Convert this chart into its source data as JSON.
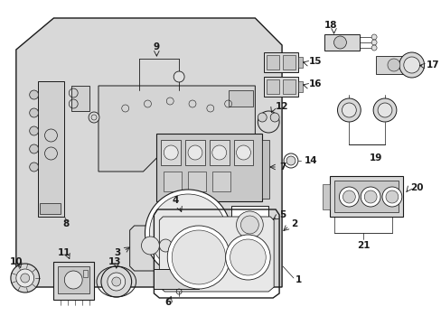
{
  "bg_color": "#ffffff",
  "lc": "#1a1a1a",
  "panel_fill": "#dcdcdc",
  "figsize": [
    4.89,
    3.6
  ],
  "dpi": 100,
  "xlim": [
    0,
    489
  ],
  "ylim": [
    0,
    360
  ]
}
